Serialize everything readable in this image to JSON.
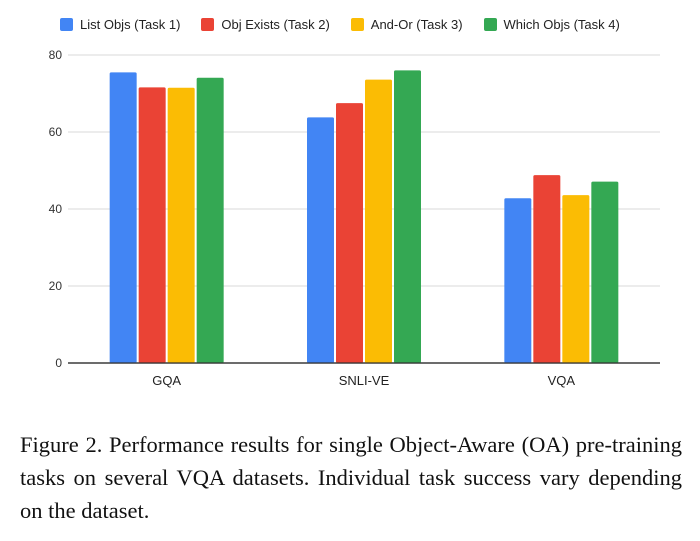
{
  "chart_data": {
    "type": "bar",
    "categories": [
      "GQA",
      "SNLI-VE",
      "VQA"
    ],
    "series": [
      {
        "name": "List Objs (Task 1)",
        "color": "#4285F4",
        "values": [
          75.5,
          63.8,
          42.8
        ]
      },
      {
        "name": "Obj Exists (Task 2)",
        "color": "#EA4335",
        "values": [
          71.6,
          67.5,
          48.8
        ]
      },
      {
        "name": "And-Or (Task 3)",
        "color": "#FBBC04",
        "values": [
          71.5,
          73.6,
          43.6
        ]
      },
      {
        "name": "Which Objs (Task 4)",
        "color": "#34A853",
        "values": [
          74.1,
          76.0,
          47.1
        ]
      }
    ],
    "title": "",
    "xlabel": "",
    "ylabel": "",
    "ylim": [
      0,
      80
    ],
    "yticks": [
      "0",
      "20",
      "40",
      "60",
      "80"
    ],
    "grid": true,
    "legend_position": "top"
  },
  "caption": "Figure 2. Performance results for single Object-Aware (OA) pre-training tasks on several VQA datasets. Individual task success vary depending on the dataset."
}
